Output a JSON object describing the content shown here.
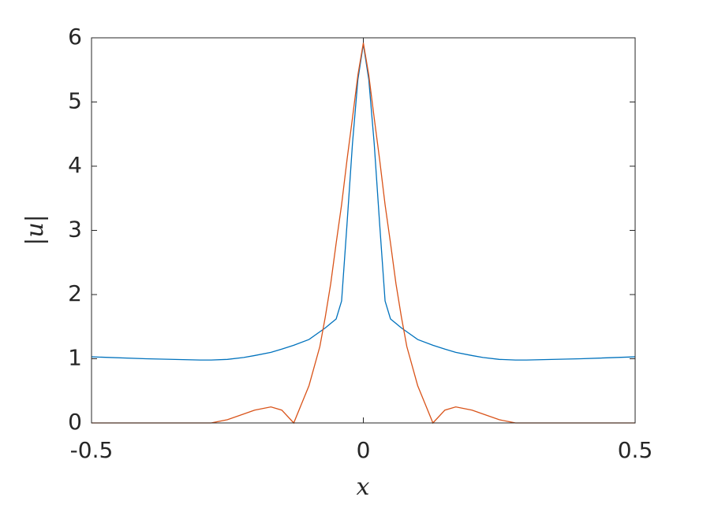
{
  "chart_data": {
    "type": "line",
    "x_label": "x",
    "y_label": "|u|",
    "x": [
      -0.5,
      -0.4,
      -0.3,
      -0.28,
      -0.25,
      -0.22,
      -0.2,
      -0.17,
      -0.15,
      -0.128,
      -0.1,
      -0.08,
      -0.07,
      -0.06,
      -0.05,
      -0.04,
      -0.03,
      -0.02,
      -0.01,
      0,
      0.01,
      0.02,
      0.03,
      0.04,
      0.05,
      0.06,
      0.07,
      0.08,
      0.1,
      0.128,
      0.15,
      0.17,
      0.2,
      0.22,
      0.25,
      0.28,
      0.3,
      0.4,
      0.5
    ],
    "series": [
      {
        "color": "#0072bd",
        "values": [
          1.03,
          1.0,
          0.98,
          0.98,
          0.99,
          1.02,
          1.05,
          1.1,
          1.15,
          1.21,
          1.3,
          1.42,
          1.48,
          1.55,
          1.62,
          1.9,
          3.1,
          4.35,
          5.35,
          5.9,
          5.35,
          4.35,
          3.1,
          1.9,
          1.62,
          1.55,
          1.48,
          1.42,
          1.3,
          1.21,
          1.15,
          1.1,
          1.05,
          1.02,
          0.99,
          0.98,
          0.98,
          1.0,
          1.03
        ]
      },
      {
        "color": "#d95319",
        "values": [
          0,
          0,
          0,
          0,
          0.05,
          0.14,
          0.2,
          0.25,
          0.2,
          0,
          0.58,
          1.19,
          1.65,
          2.17,
          2.8,
          3.4,
          4.1,
          4.75,
          5.42,
          5.92,
          5.42,
          4.75,
          4.1,
          3.4,
          2.8,
          2.17,
          1.65,
          1.19,
          0.58,
          0,
          0.2,
          0.25,
          0.2,
          0.14,
          0.05,
          0,
          0,
          0,
          0
        ]
      }
    ],
    "xlim": [
      -0.5,
      0.5
    ],
    "ylim": [
      0,
      6
    ],
    "xticks": [
      -0.5,
      0,
      0.5
    ],
    "yticks": [
      0,
      1,
      2,
      3,
      4,
      5,
      6
    ]
  }
}
